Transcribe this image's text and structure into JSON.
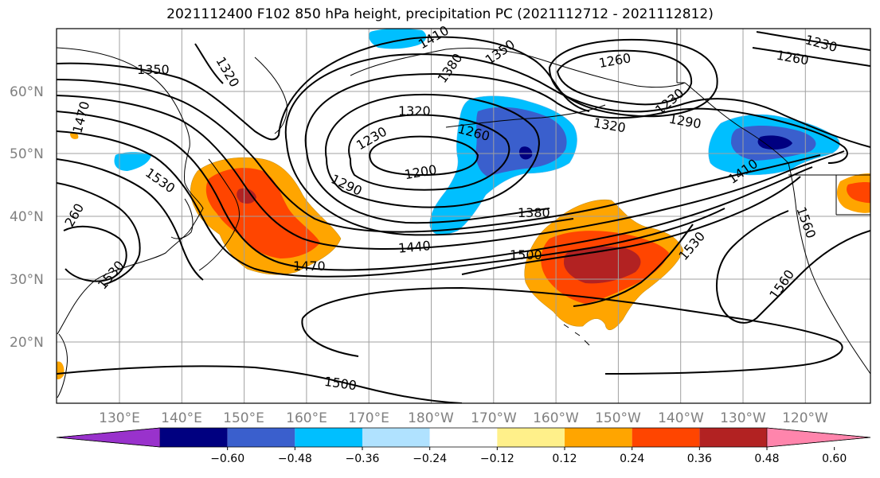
{
  "title": "2021112400 F102 850 hPa height, precipitation PC (2021112712 - 2021112812)",
  "map": {
    "lon_range": [
      120,
      -110
    ],
    "lat_range": [
      10,
      70
    ],
    "grid": true,
    "lat_labels": [
      "20°N",
      "30°N",
      "40°N",
      "50°N",
      "60°N"
    ],
    "lon_labels": [
      "130°E",
      "140°E",
      "150°E",
      "160°E",
      "170°E",
      "180°W",
      "170°W",
      "160°W",
      "150°W",
      "140°W",
      "130°W",
      "120°W"
    ],
    "contour_labels": [
      "1350",
      "1320",
      "1410",
      "1380",
      "1350",
      "1260",
      "1230",
      "1260",
      "1470",
      "1320",
      "1230",
      "1260",
      "1320",
      "1290",
      "1230",
      "1200",
      "1290",
      "1380",
      "1440",
      "1500",
      "1530",
      "1470",
      "1530",
      "1560",
      "1560",
      "1410",
      "260",
      "1530",
      "1500"
    ]
  },
  "colorbar": {
    "colors": [
      "#9932cc",
      "#000080",
      "#3a5fcd",
      "#00bfff",
      "#b0e2ff",
      "#ffffff",
      "#fff08a",
      "#ffa500",
      "#ff4500",
      "#b22222",
      "#ff85ac"
    ],
    "ticks": [
      "−0.60",
      "−0.48",
      "−0.36",
      "−0.24",
      "−0.12",
      "0.12",
      "0.24",
      "0.36",
      "0.48",
      "0.60"
    ]
  }
}
